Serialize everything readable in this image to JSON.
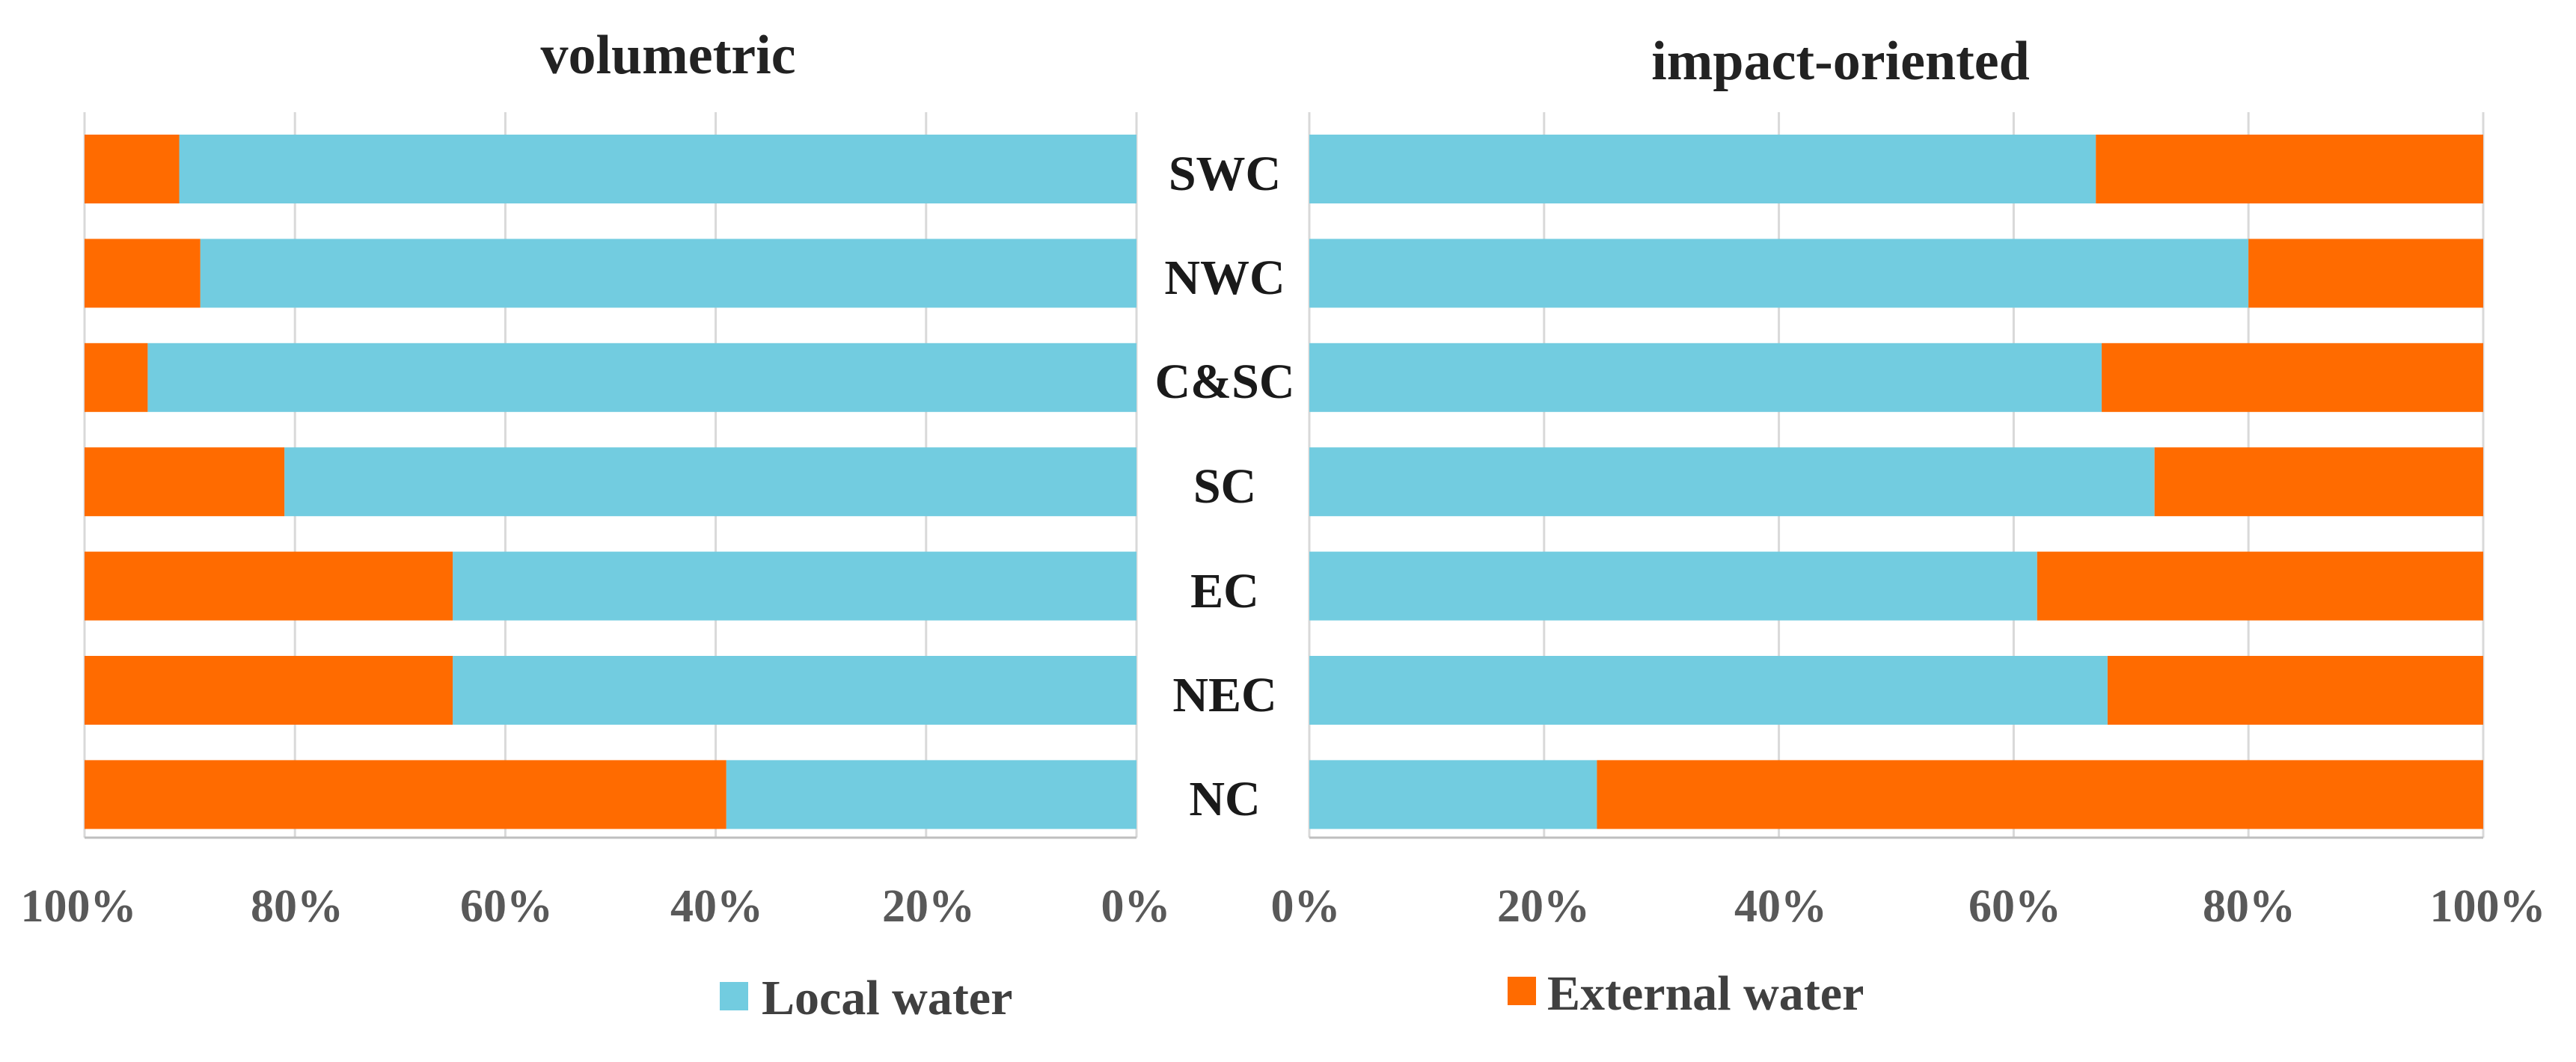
{
  "chart_data": [
    {
      "type": "bar",
      "orientation": "horizontal-stacked-100",
      "direction": "right-to-left",
      "title": "volumetric",
      "categories": [
        "SWC",
        "NWC",
        "C&SC",
        "SC",
        "EC",
        "NEC",
        "NC"
      ],
      "series": [
        {
          "name": "Local water",
          "values": [
            91,
            89,
            94,
            81,
            65,
            65,
            39
          ]
        },
        {
          "name": "External water",
          "values": [
            9,
            11,
            6,
            19,
            35,
            35,
            61
          ]
        }
      ],
      "xlim": [
        0,
        100
      ],
      "tick_labels": [
        "100%",
        "80%",
        "60%",
        "40%",
        "20%",
        "0%"
      ],
      "grid": true
    },
    {
      "type": "bar",
      "orientation": "horizontal-stacked-100",
      "direction": "left-to-right",
      "title": "impact-oriented",
      "categories": [
        "SWC",
        "NWC",
        "C&SC",
        "SC",
        "EC",
        "NEC",
        "NC"
      ],
      "series": [
        {
          "name": "Local water",
          "values": [
            67,
            80,
            67.5,
            72,
            62,
            68,
            24.5
          ]
        },
        {
          "name": "External water",
          "values": [
            33,
            20,
            32.5,
            28,
            38,
            32,
            75.5
          ]
        }
      ],
      "xlim": [
        0,
        100
      ],
      "tick_labels": [
        "0%",
        "20%",
        "40%",
        "60%",
        "80%",
        "100%"
      ],
      "grid": true
    }
  ],
  "legend": [
    {
      "label": "Local water",
      "color": "#72CCE0"
    },
    {
      "label": "External water",
      "color": "#FF6B00"
    }
  ],
  "colors": {
    "local": "#72CCE0",
    "external": "#FF6B00"
  }
}
